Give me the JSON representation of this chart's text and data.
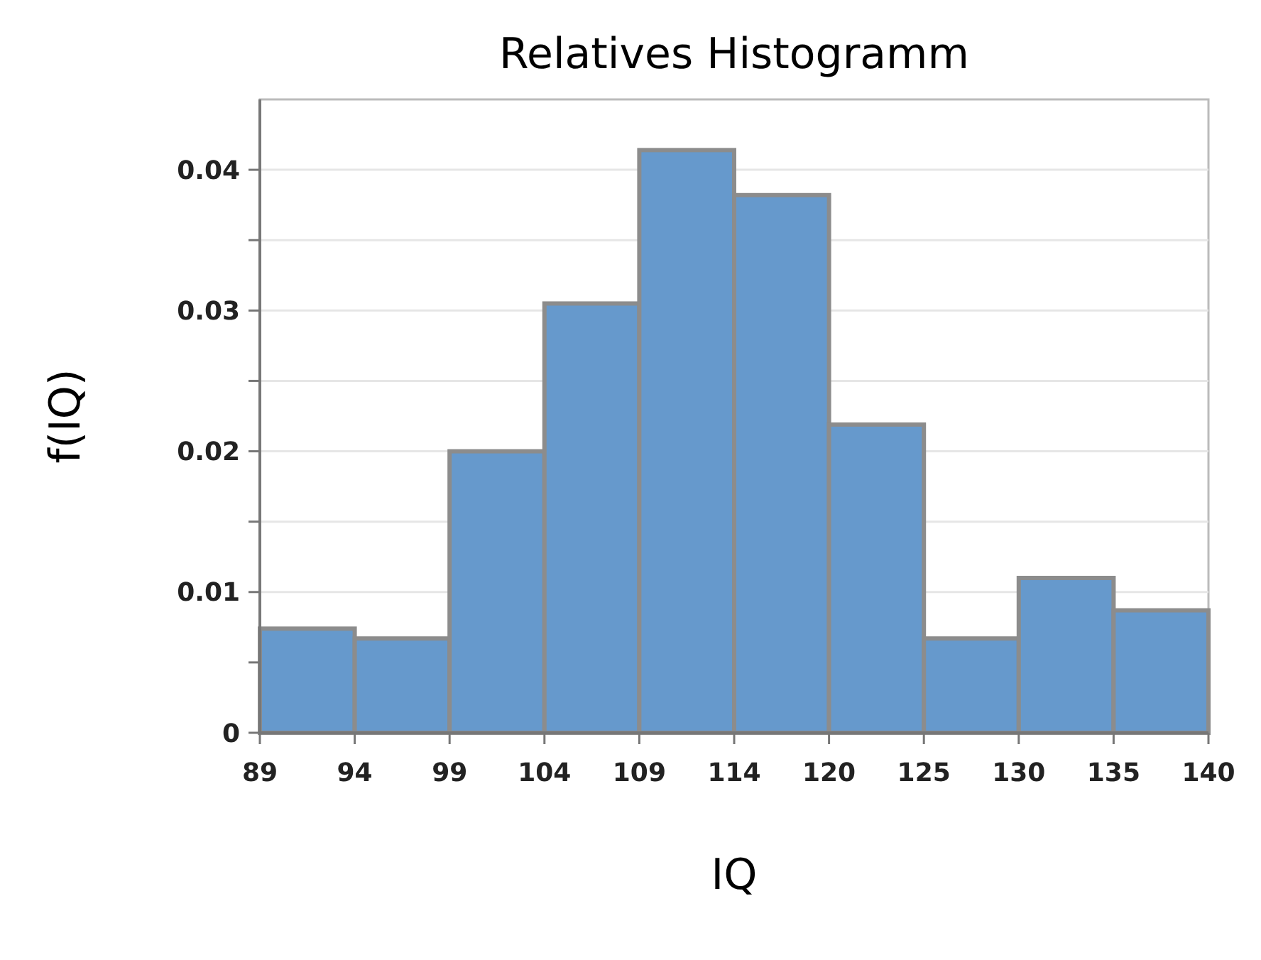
{
  "chart_data": {
    "type": "histogram",
    "title": "Relatives Histogramm",
    "xlabel": "IQ",
    "ylabel": "f(IQ)",
    "bins": [
      89,
      94.1,
      99.2,
      104.3,
      109.4,
      114.5,
      119.6,
      124.7,
      129.8,
      134.9,
      140
    ],
    "values": [
      0.0074,
      0.0067,
      0.02,
      0.0305,
      0.0414,
      0.0382,
      0.0219,
      0.0067,
      0.011,
      0.0087
    ],
    "color": "#6699cc",
    "xlim": [
      89,
      140
    ],
    "xticks": [
      89,
      {
        "value": 94.1,
        "label": "94"
      },
      {
        "value": 99.2,
        "label": "99"
      },
      {
        "value": 104.3,
        "label": "104"
      },
      {
        "value": 109.4,
        "label": "109"
      },
      {
        "value": 114.5,
        "label": "114"
      },
      {
        "value": 119.6,
        "label": "120"
      },
      {
        "value": 124.7,
        "label": "125"
      },
      {
        "value": 129.8,
        "label": "130"
      },
      {
        "value": 134.9,
        "label": "135"
      },
      140
    ],
    "ylim": [
      0,
      0.045
    ],
    "yticks": [
      0,
      {
        "value": 0.005,
        "label": null
      },
      0.01,
      {
        "value": 0.015,
        "label": null
      },
      0.02,
      {
        "value": 0.025,
        "label": null
      },
      0.03,
      {
        "value": 0.035,
        "label": null
      },
      0.04
    ],
    "grid": "y"
  }
}
